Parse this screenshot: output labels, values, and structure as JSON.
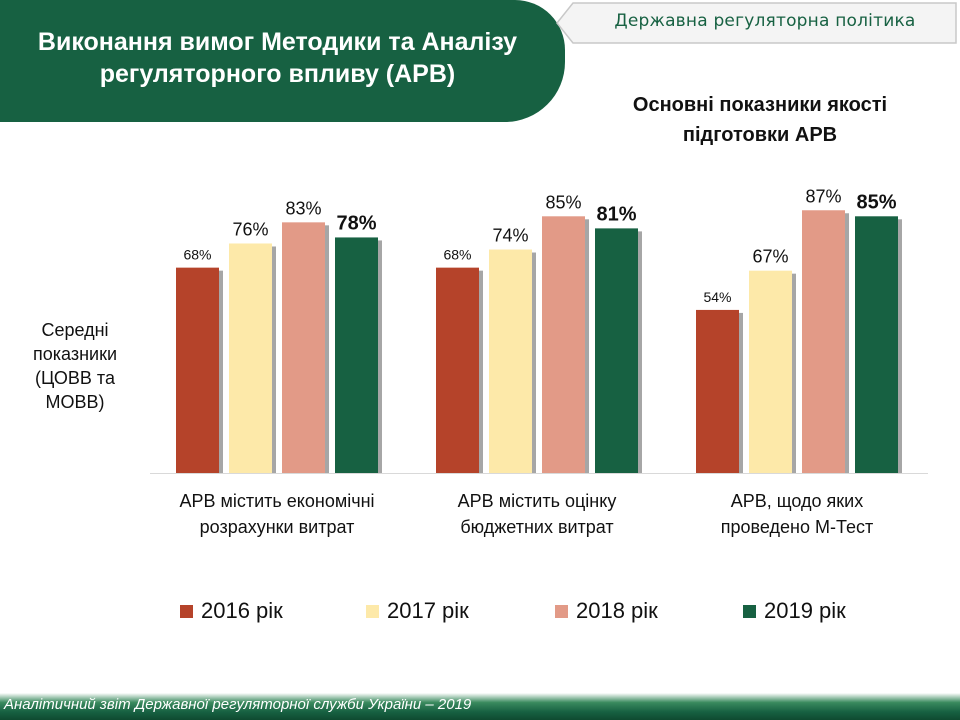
{
  "header": {
    "title_line1": "Виконання вимог Методики та Аналізу",
    "title_line2": "регуляторного впливу (АРВ)",
    "org_tag": "Державна регуляторна політика"
  },
  "colors": {
    "brand_green": "#176142",
    "s2016": "#B5432A",
    "s2017": "#FDE9A9",
    "s2018": "#E29A87",
    "s2019": "#176142"
  },
  "chart_data": {
    "type": "bar",
    "title_line1": "Основні показники якості",
    "title_line2": "підготовки АРВ",
    "ylabel_lines": [
      "Середні",
      "показники",
      "(ЦОВВ та",
      "МОВВ)"
    ],
    "ylim": [
      0,
      100
    ],
    "grid": false,
    "legend_position": "bottom",
    "categories": [
      {
        "line1": "АРВ містить економічні",
        "line2": "розрахунки витрат"
      },
      {
        "line1": "АРВ містить оцінку",
        "line2": "бюджетних витрат"
      },
      {
        "line1": "АРВ, щодо яких",
        "line2": "проведено М-Тест"
      }
    ],
    "series": [
      {
        "name": "2016 рік",
        "color": "#B5432A",
        "values": [
          68,
          68,
          54
        ],
        "labels": [
          "68%",
          "68%",
          "54%"
        ]
      },
      {
        "name": "2017 рік",
        "color": "#FDE9A9",
        "values": [
          76,
          74,
          67
        ],
        "labels": [
          "76%",
          "74%",
          "67%"
        ]
      },
      {
        "name": "2018 рік",
        "color": "#E29A87",
        "values": [
          83,
          85,
          87
        ],
        "labels": [
          "83%",
          "85%",
          "87%"
        ]
      },
      {
        "name": "2019 рік",
        "color": "#176142",
        "values": [
          78,
          81,
          85
        ],
        "labels": [
          "78%",
          "81%",
          "85%"
        ]
      }
    ]
  },
  "footer": {
    "text": "Аналітичний звіт Державної регуляторної служби України – 2019"
  }
}
